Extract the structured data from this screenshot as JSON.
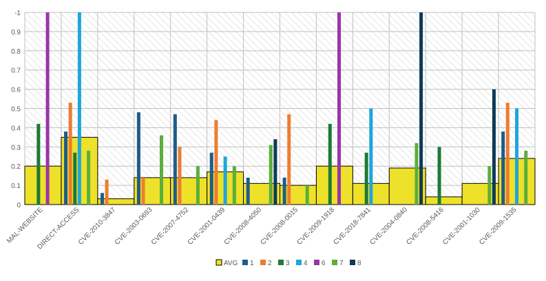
{
  "chart_data": {
    "type": "bar",
    "title": "",
    "xlabel": "",
    "ylabel": "",
    "ylim": [
      0,
      1
    ],
    "y_ticks": [
      "0",
      "0.1",
      "0.2",
      "0.3",
      "0.4",
      "0.5",
      "0.6",
      "0.7",
      "0.8",
      "0.9",
      "-1"
    ],
    "categories": [
      "MAL-WEBSITE",
      "DIRECT-ACCESS",
      "CVE-2010-3847",
      "CVE-2003-0693",
      "CVE-2007-4752",
      "CVE-2001-0439",
      "CVE-2008-4050",
      "CVE-2008-0015",
      "CVE-2009-1918",
      "CVE-2018-7841",
      "CVE-2004-0840",
      "CVE-2008-5416",
      "CVE-2001-1030",
      "CVE-2009-1535"
    ],
    "avg": {
      "name": "AVG",
      "color": "#EEE12A",
      "values": [
        0.2,
        0.35,
        0.03,
        0.14,
        0.14,
        0.17,
        0.11,
        0.1,
        0.2,
        0.11,
        0.19,
        0.04,
        0.11,
        0.24
      ]
    },
    "series": [
      {
        "name": "1",
        "color": "#1F5C88",
        "values": [
          null,
          0.38,
          0.06,
          0.48,
          0.47,
          0.27,
          0.14,
          0.14,
          null,
          null,
          null,
          null,
          null,
          0.38
        ]
      },
      {
        "name": "2",
        "color": "#ED7D31",
        "values": [
          null,
          0.53,
          0.13,
          0.14,
          0.3,
          0.44,
          null,
          0.47,
          null,
          null,
          null,
          null,
          null,
          0.53
        ]
      },
      {
        "name": "3",
        "color": "#1E7A35",
        "values": [
          0.42,
          0.27,
          null,
          null,
          null,
          null,
          null,
          null,
          0.42,
          0.27,
          null,
          0.3,
          null,
          null
        ]
      },
      {
        "name": "4",
        "color": "#1FA5DB",
        "values": [
          null,
          1.0,
          null,
          null,
          null,
          0.25,
          null,
          null,
          null,
          0.5,
          null,
          null,
          null,
          0.5
        ]
      },
      {
        "name": "6",
        "color": "#9B34A8",
        "values": [
          1.0,
          null,
          null,
          null,
          null,
          null,
          null,
          null,
          1.0,
          null,
          null,
          null,
          null,
          null
        ]
      },
      {
        "name": "7",
        "color": "#5BAE3A",
        "values": [
          null,
          0.28,
          null,
          0.36,
          0.2,
          0.2,
          0.31,
          0.1,
          null,
          null,
          0.32,
          null,
          0.2,
          0.28
        ]
      },
      {
        "name": "8",
        "color": "#0E3A5A",
        "values": [
          null,
          null,
          null,
          null,
          null,
          null,
          0.34,
          null,
          null,
          null,
          1.0,
          null,
          0.6,
          null
        ]
      }
    ],
    "legend_position": "bottom",
    "grid": true
  }
}
